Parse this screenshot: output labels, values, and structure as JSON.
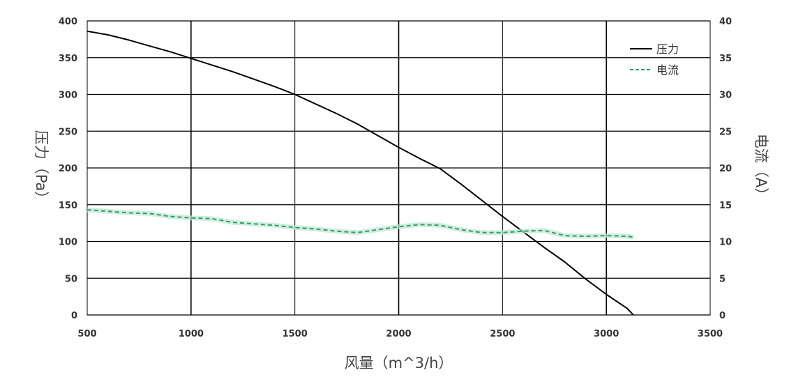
{
  "chart_data": {
    "type": "line",
    "xlabel": "风量（m^3/h）",
    "ylabel_left": "压力（Pa）",
    "ylabel_right": "电流（A）",
    "xlim": [
      500,
      3500
    ],
    "ylim_left": [
      0,
      400
    ],
    "ylim_right": [
      0,
      40
    ],
    "x_ticks": [
      500,
      1000,
      1500,
      2000,
      2500,
      3000,
      3500
    ],
    "y_left_ticks": [
      0,
      50,
      100,
      150,
      200,
      250,
      300,
      350,
      400
    ],
    "y_right_ticks": [
      0,
      5,
      10,
      15,
      20,
      25,
      30,
      35,
      40
    ],
    "grid": true,
    "legend_position": "top-right",
    "series": [
      {
        "name": "压力",
        "axis": "left",
        "color": "#000000",
        "style": "solid",
        "x": [
          500,
          600,
          700,
          800,
          900,
          1000,
          1100,
          1200,
          1300,
          1400,
          1500,
          1600,
          1700,
          1800,
          1900,
          2000,
          2100,
          2200,
          2300,
          2400,
          2500,
          2600,
          2700,
          2800,
          2900,
          3000,
          3100,
          3130
        ],
        "y": [
          386,
          381,
          374,
          366,
          358,
          349,
          340,
          331,
          321,
          311,
          300,
          287,
          274,
          260,
          244,
          228,
          213,
          199,
          178,
          156,
          134,
          113,
          92,
          72,
          49,
          28,
          9,
          0
        ]
      },
      {
        "name": "电流",
        "axis": "right",
        "color": "#2e9e6e",
        "style": "dashed",
        "x": [
          500,
          600,
          700,
          800,
          900,
          1000,
          1100,
          1200,
          1300,
          1400,
          1500,
          1600,
          1700,
          1800,
          1900,
          2000,
          2100,
          2200,
          2300,
          2400,
          2500,
          2600,
          2700,
          2800,
          2900,
          3000,
          3100,
          3130
        ],
        "y": [
          14.3,
          14.1,
          13.9,
          13.8,
          13.4,
          13.2,
          13.1,
          12.6,
          12.4,
          12.2,
          11.9,
          11.7,
          11.4,
          11.2,
          11.6,
          12.0,
          12.3,
          12.2,
          11.6,
          11.2,
          11.2,
          11.4,
          11.5,
          10.8,
          10.7,
          10.8,
          10.7,
          10.6
        ]
      }
    ]
  }
}
